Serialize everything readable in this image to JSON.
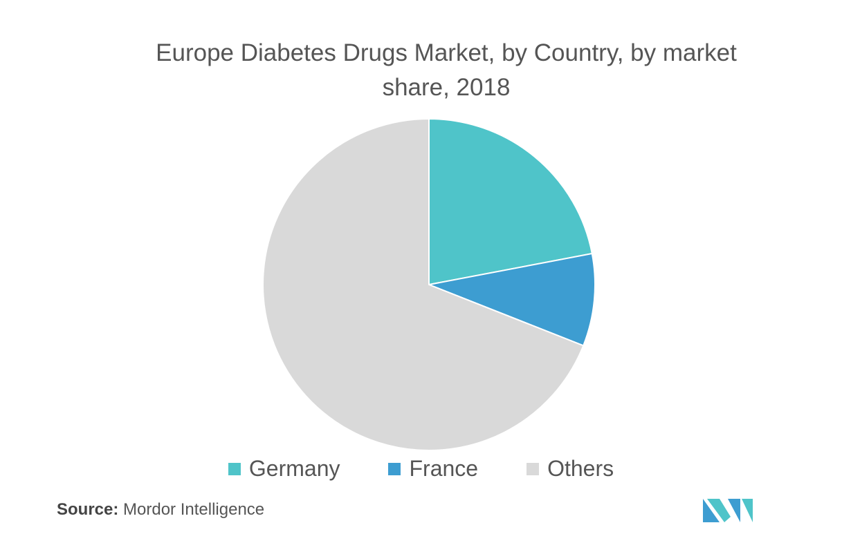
{
  "chart_data": {
    "type": "pie",
    "title": "Europe Diabetes Drugs Market, by Country, by market share, 2018",
    "categories": [
      "Germany",
      "France",
      "Others"
    ],
    "values": [
      22,
      9,
      69
    ],
    "colors": [
      "#4fc4c9",
      "#3d9dd1",
      "#d9d9d9"
    ],
    "legend": "bottom"
  },
  "source": {
    "label": "Source:",
    "text": "Mordor Intelligence"
  }
}
